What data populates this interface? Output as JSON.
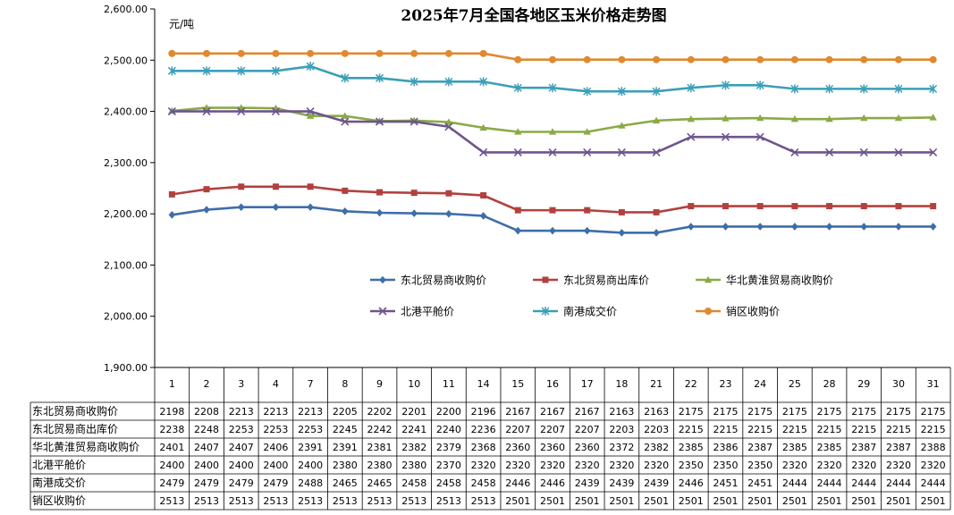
{
  "chart_data": {
    "type": "line",
    "title": "2025年7月全国各地区玉米价格走势图",
    "ylabel": "元/吨",
    "xlabel": "",
    "ylim": [
      1900,
      2600
    ],
    "yticks": [
      1900,
      2000,
      2100,
      2200,
      2300,
      2400,
      2500,
      2600
    ],
    "ytick_labels": [
      "1,900.00",
      "2,000.00",
      "2,100.00",
      "2,200.00",
      "2,300.00",
      "2,400.00",
      "2,500.00",
      "2,600.00"
    ],
    "grid": false,
    "legend": "center-right inside plot, 2 rows x 3 columns",
    "categories": [
      "1",
      "2",
      "3",
      "4",
      "7",
      "8",
      "9",
      "10",
      "11",
      "14",
      "15",
      "16",
      "17",
      "18",
      "21",
      "22",
      "23",
      "24",
      "25",
      "28",
      "29",
      "30",
      "31"
    ],
    "series": [
      {
        "name": "东北贸易商收购价",
        "color": "#3e6ea8",
        "marker": "diamond",
        "values": [
          2198,
          2208,
          2213,
          2213,
          2213,
          2205,
          2202,
          2201,
          2200,
          2196,
          2167,
          2167,
          2167,
          2163,
          2163,
          2175,
          2175,
          2175,
          2175,
          2175,
          2175,
          2175,
          2175
        ]
      },
      {
        "name": "东北贸易商出库价",
        "color": "#b2413e",
        "marker": "square",
        "values": [
          2238,
          2248,
          2253,
          2253,
          2253,
          2245,
          2242,
          2241,
          2240,
          2236,
          2207,
          2207,
          2207,
          2203,
          2203,
          2215,
          2215,
          2215,
          2215,
          2215,
          2215,
          2215,
          2215
        ]
      },
      {
        "name": "华北黄淮贸易商收购价",
        "color": "#8aaa45",
        "marker": "triangle",
        "values": [
          2401,
          2407,
          2407,
          2406,
          2391,
          2391,
          2381,
          2382,
          2379,
          2368,
          2360,
          2360,
          2360,
          2372,
          2382,
          2385,
          2386,
          2387,
          2385,
          2385,
          2387,
          2387,
          2388
        ]
      },
      {
        "name": "北港平舱价",
        "color": "#6e558e",
        "marker": "x",
        "values": [
          2400,
          2400,
          2400,
          2400,
          2400,
          2380,
          2380,
          2380,
          2370,
          2320,
          2320,
          2320,
          2320,
          2320,
          2320,
          2350,
          2350,
          2350,
          2320,
          2320,
          2320,
          2320,
          2320
        ]
      },
      {
        "name": "南港成交价",
        "color": "#3b9fb8",
        "marker": "star",
        "values": [
          2479,
          2479,
          2479,
          2479,
          2488,
          2465,
          2465,
          2458,
          2458,
          2458,
          2446,
          2446,
          2439,
          2439,
          2439,
          2446,
          2451,
          2451,
          2444,
          2444,
          2444,
          2444,
          2444
        ]
      },
      {
        "name": "销区收购价",
        "color": "#e0892f",
        "marker": "circle",
        "values": [
          2513,
          2513,
          2513,
          2513,
          2513,
          2513,
          2513,
          2513,
          2513,
          2513,
          2501,
          2501,
          2501,
          2501,
          2501,
          2501,
          2501,
          2501,
          2501,
          2501,
          2501,
          2501,
          2501
        ]
      }
    ]
  }
}
